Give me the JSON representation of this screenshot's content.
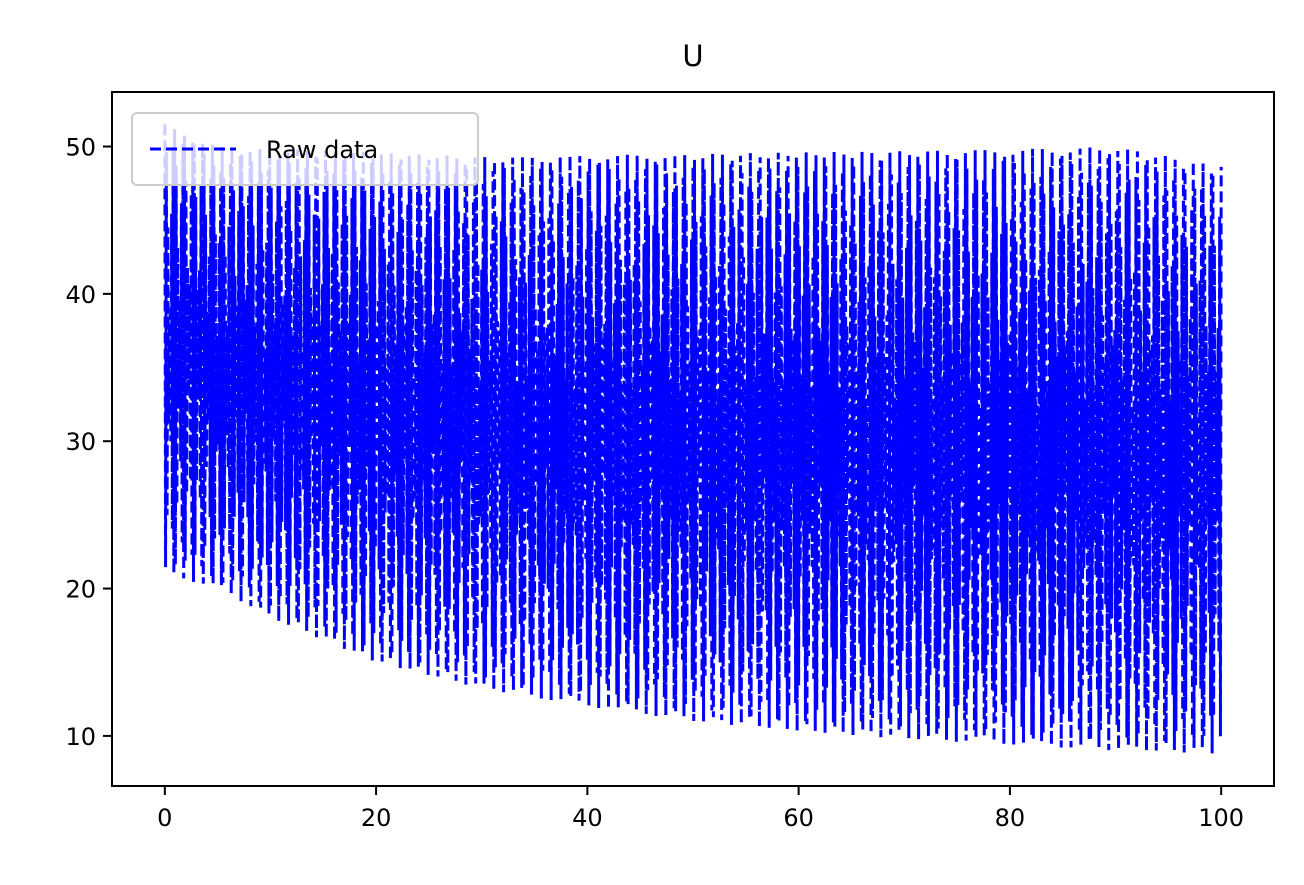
{
  "chart_data": {
    "type": "line",
    "title": "U",
    "xlabel": "",
    "ylabel": "",
    "xlim": [
      -5,
      105
    ],
    "ylim": [
      6.6,
      53.7
    ],
    "x_ticks": [
      0,
      20,
      40,
      60,
      80,
      100
    ],
    "x_tick_labels": [
      "0",
      "20",
      "40",
      "60",
      "80",
      "100"
    ],
    "y_ticks": [
      10,
      20,
      30,
      40,
      50
    ],
    "y_tick_labels": [
      "10",
      "20",
      "30",
      "40",
      "50"
    ],
    "grid": false,
    "legend": {
      "position": "upper-left",
      "entries": [
        "Raw data"
      ]
    },
    "series": [
      {
        "name": "Raw data",
        "color": "#0000ff",
        "line_style": "dashed",
        "description_points": {
          "x": [
            0,
            5,
            10,
            15,
            20,
            30,
            40,
            50,
            60,
            70,
            80,
            90,
            100
          ],
          "upper": [
            51.5,
            50.0,
            49.8,
            49.8,
            49.6,
            49.3,
            49.4,
            49.5,
            49.6,
            49.7,
            49.8,
            50.0,
            48.7
          ],
          "lower": [
            21.0,
            20.0,
            18.0,
            16.5,
            15.0,
            13.2,
            12.0,
            11.0,
            10.3,
            9.8,
            9.4,
            9.0,
            8.8
          ]
        }
      }
    ]
  }
}
